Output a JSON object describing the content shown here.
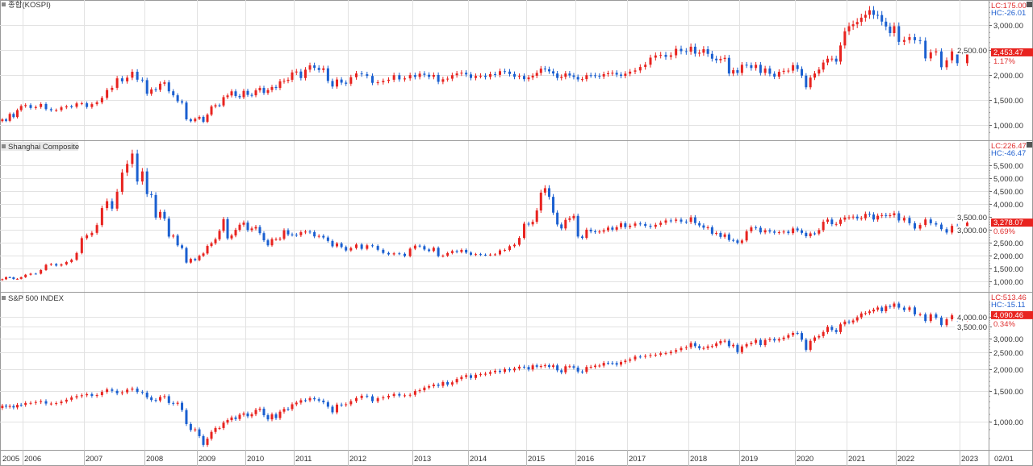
{
  "colors": {
    "up": "#e8231f",
    "down": "#1a5fd0",
    "last_box": "#e8231f",
    "grid": "#e2e2e2"
  },
  "x_axis": {
    "labels": [
      "2005",
      "2006",
      "2007",
      "2008",
      "2009",
      "2010",
      "2011",
      "2012",
      "2013",
      "2014",
      "2015",
      "2016",
      "2017",
      "2018",
      "2019",
      "2020",
      "2021",
      "2022",
      "2023"
    ],
    "current_date": "02/01"
  },
  "chart_data": [
    {
      "type": "candlestick",
      "title": "종합(KOSPI)",
      "scale": "linear",
      "ylim": [
        850,
        3450
      ],
      "y_ticks": [
        1000,
        1500,
        2000,
        2500,
        3000
      ],
      "y_tick_labels": [
        "1,000.00",
        "1,500.00",
        "2,000.00",
        "2,500.00",
        "3,000.00"
      ],
      "lc": "LC:175.00",
      "hc": "HC:-26.01",
      "last": "2,453.47",
      "change_pct": "1.17%",
      "start": "2005-07",
      "interval": "monthly",
      "close": [
        1111,
        1083,
        1221,
        1158,
        1297,
        1379,
        1399,
        1341,
        1359,
        1419,
        1317,
        1295,
        1297,
        1352,
        1371,
        1364,
        1432,
        1434,
        1360,
        1417,
        1452,
        1542,
        1700,
        1743,
        1933,
        1873,
        1946,
        2064,
        1906,
        1897,
        1624,
        1711,
        1703,
        1825,
        1852,
        1674,
        1594,
        1474,
        1448,
        1113,
        1076,
        1124,
        1162,
        1063,
        1206,
        1369,
        1395,
        1390,
        1557,
        1591,
        1673,
        1580,
        1555,
        1682,
        1602,
        1594,
        1692,
        1741,
        1641,
        1698,
        1759,
        1742,
        1873,
        1882,
        1904,
        2051,
        2069,
        1939,
        2106,
        2192,
        2142,
        2100,
        2133,
        1880,
        1769,
        1909,
        1847,
        1825,
        1955,
        2030,
        2014,
        1981,
        1843,
        1854,
        1881,
        1905,
        1996,
        1912,
        1932,
        1997,
        1961,
        2026,
        2004,
        1963,
        2001,
        1863,
        1914,
        1926,
        1996,
        2030,
        2044,
        2011,
        1941,
        1980,
        1985,
        1961,
        2017,
        2002,
        2076,
        2068,
        2020,
        1964,
        1981,
        1916,
        1949,
        1985,
        2041,
        2127,
        2114,
        2074,
        2030,
        1941,
        1963,
        2029,
        1991,
        1961,
        1912,
        1917,
        1996,
        1994,
        1983,
        1970,
        2016,
        2034,
        2043,
        2008,
        1983,
        2026,
        2067,
        2091,
        2160,
        2205,
        2347,
        2391,
        2402,
        2363,
        2394,
        2523,
        2476,
        2467,
        2566,
        2427,
        2445,
        2515,
        2423,
        2326,
        2295,
        2322,
        2343,
        2029,
        2096,
        2041,
        2204,
        2195,
        2140,
        2203,
        2041,
        2130,
        2024,
        1967,
        2063,
        2083,
        2087,
        2197,
        2119,
        1987,
        1754,
        1947,
        2029,
        2108,
        2249,
        2326,
        2327,
        2267,
        2591,
        2873,
        2976,
        3013,
        3061,
        3147,
        3203,
        3296,
        3202,
        3199,
        3068,
        2970,
        2839,
        2977,
        2663,
        2699,
        2757,
        2695,
        2685,
        2332,
        2451,
        2472,
        2155,
        2293,
        2472,
        2236,
        2453
      ]
    },
    {
      "type": "candlestick",
      "title": "Shanghai Composite",
      "scale": "linear",
      "ylim": [
        800,
        6100
      ],
      "y_ticks": [
        1000,
        1500,
        2000,
        2500,
        3000,
        3500,
        4000,
        4500,
        5000,
        5500
      ],
      "y_tick_labels": [
        "1,000.00",
        "1,500.00",
        "2,000.00",
        "2,500.00",
        "3,000.00",
        "3,500.00",
        "4,000.00",
        "4,500.00",
        "5,000.00",
        "5,500.00"
      ],
      "lc": "LC:226.47",
      "hc": "HC:-46.47",
      "last": "3,278.07",
      "change_pct": "0.69%",
      "start": "2005-07",
      "interval": "monthly",
      "close": [
        1083,
        1162,
        1155,
        1092,
        1099,
        1161,
        1258,
        1299,
        1298,
        1440,
        1642,
        1672,
        1612,
        1658,
        1752,
        1837,
        2099,
        2675,
        2786,
        2881,
        3183,
        3841,
        4109,
        3820,
        4471,
        5218,
        5552,
        5954,
        4871,
        5262,
        4383,
        4348,
        3473,
        3693,
        3433,
        2736,
        2775,
        2397,
        2293,
        1729,
        1871,
        1821,
        1991,
        2082,
        2373,
        2477,
        2632,
        2959,
        3412,
        2667,
        2779,
        2996,
        3195,
        3277,
        2989,
        3051,
        3110,
        2870,
        2592,
        2398,
        2638,
        2638,
        2655,
        2979,
        2820,
        2808,
        2790,
        2905,
        2928,
        2911,
        2743,
        2762,
        2701,
        2568,
        2359,
        2468,
        2333,
        2199,
        2292,
        2428,
        2262,
        2397,
        2373,
        2225,
        2103,
        2047,
        2086,
        2069,
        1980,
        2269,
        2385,
        2365,
        2237,
        2178,
        2300,
        1979,
        1994,
        2098,
        2175,
        2141,
        2220,
        2116,
        2033,
        2056,
        2033,
        2026,
        2039,
        2048,
        2201,
        2217,
        2364,
        2420,
        2683,
        3235,
        3210,
        3310,
        3748,
        4441,
        4612,
        4277,
        3664,
        3206,
        3053,
        3383,
        3445,
        3539,
        2738,
        2688,
        3003,
        2938,
        2917,
        2930,
        2979,
        3085,
        3005,
        3100,
        3250,
        3104,
        3159,
        3242,
        3223,
        3155,
        3117,
        3192,
        3273,
        3361,
        3349,
        3393,
        3317,
        3307,
        3481,
        3259,
        3169,
        3082,
        3095,
        2847,
        2876,
        2725,
        2821,
        2603,
        2588,
        2494,
        2585,
        2941,
        3091,
        3078,
        2899,
        2979,
        2932,
        2886,
        2905,
        2929,
        2872,
        3050,
        2977,
        2880,
        2750,
        2860,
        2852,
        2985,
        3310,
        3396,
        3218,
        3225,
        3392,
        3473,
        3483,
        3509,
        3442,
        3447,
        3615,
        3591,
        3397,
        3544,
        3568,
        3547,
        3564,
        3640,
        3361,
        3462,
        3253,
        3047,
        3186,
        3399,
        3253,
        3202,
        3024,
        2893,
        3151,
        3089,
        3278
      ]
    },
    {
      "type": "candlestick",
      "title": "S&P 500 INDEX",
      "scale": "log",
      "ylim": [
        700,
        4900
      ],
      "y_ticks": [
        1000,
        1500,
        2000,
        2500,
        3000,
        3500,
        4000
      ],
      "y_tick_labels": [
        "1,000.00",
        "1,500.00",
        "2,000.00",
        "2,500.00",
        "3,000.00",
        "3,500.00",
        "4,000.00"
      ],
      "lc": "LC:513.46",
      "hc": "HC:-15.11",
      "last": "4,090.46",
      "change_pct": "0.34%",
      "start": "2005-07",
      "interval": "monthly",
      "close": [
        1234,
        1220,
        1229,
        1207,
        1249,
        1248,
        1280,
        1281,
        1295,
        1311,
        1270,
        1270,
        1277,
        1304,
        1336,
        1378,
        1401,
        1418,
        1438,
        1407,
        1421,
        1482,
        1531,
        1503,
        1455,
        1474,
        1527,
        1549,
        1481,
        1468,
        1379,
        1331,
        1323,
        1386,
        1400,
        1280,
        1267,
        1283,
        1166,
        969,
        896,
        903,
        826,
        735,
        798,
        873,
        919,
        919,
        987,
        1021,
        1057,
        1036,
        1096,
        1115,
        1074,
        1104,
        1169,
        1187,
        1089,
        1031,
        1102,
        1049,
        1141,
        1183,
        1181,
        1258,
        1286,
        1327,
        1326,
        1364,
        1345,
        1321,
        1292,
        1219,
        1131,
        1253,
        1247,
        1258,
        1312,
        1366,
        1408,
        1398,
        1310,
        1362,
        1379,
        1407,
        1441,
        1412,
        1416,
        1426,
        1498,
        1515,
        1569,
        1598,
        1631,
        1606,
        1686,
        1633,
        1682,
        1757,
        1806,
        1848,
        1783,
        1859,
        1872,
        1884,
        1924,
        1960,
        1931,
        2003,
        1972,
        2018,
        2068,
        2059,
        1995,
        2105,
        2068,
        2086,
        2107,
        2063,
        2104,
        1972,
        1920,
        2079,
        2080,
        2044,
        1940,
        1932,
        2060,
        2065,
        2097,
        2099,
        2174,
        2171,
        2168,
        2126,
        2199,
        2239,
        2279,
        2364,
        2363,
        2384,
        2412,
        2423,
        2470,
        2472,
        2519,
        2575,
        2648,
        2674,
        2824,
        2714,
        2641,
        2648,
        2705,
        2718,
        2816,
        2902,
        2914,
        2712,
        2760,
        2507,
        2704,
        2784,
        2834,
        2946,
        2752,
        2942,
        2980,
        2926,
        2977,
        3038,
        3141,
        3231,
        3226,
        2954,
        2585,
        2912,
        3044,
        3100,
        3271,
        3500,
        3363,
        3270,
        3622,
        3756,
        3714,
        3811,
        3973,
        4181,
        4204,
        4298,
        4395,
        4523,
        4308,
        4605,
        4567,
        4766,
        4516,
        4374,
        4530,
        4132,
        4132,
        3785,
        4130,
        3955,
        3586,
        3872,
        4080,
        3840,
        4090
      ]
    }
  ]
}
